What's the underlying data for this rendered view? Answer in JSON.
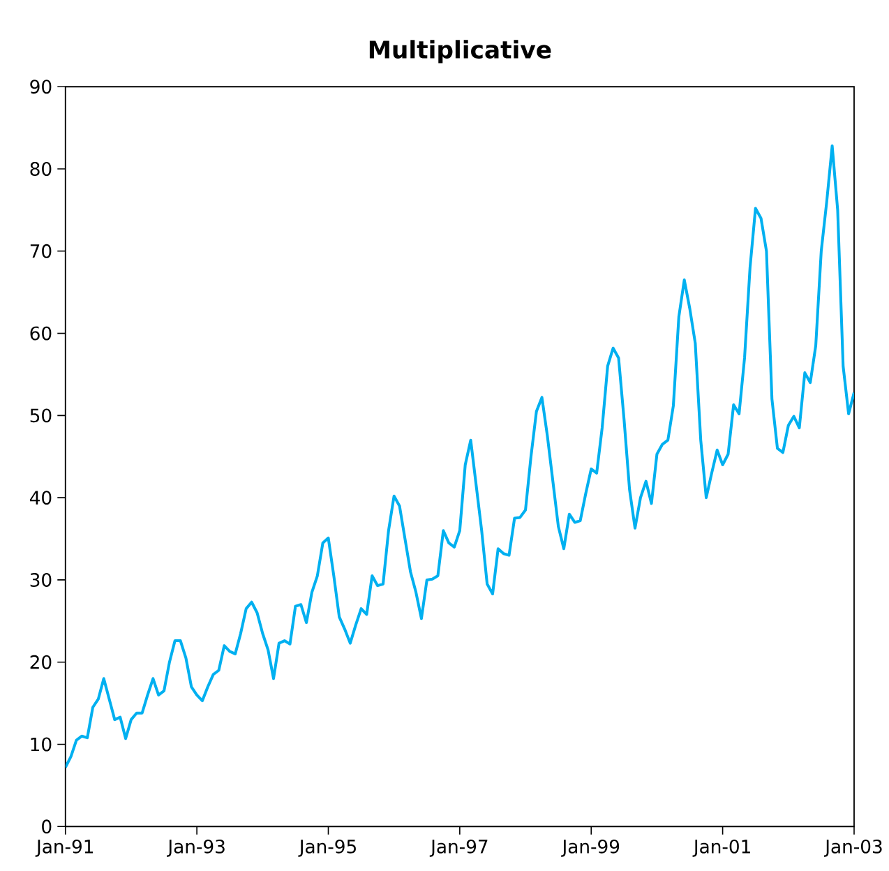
{
  "chart_data": {
    "type": "line",
    "title": "Multiplicative",
    "x": [
      "1991-01",
      "1991-02",
      "1991-03",
      "1991-04",
      "1991-05",
      "1991-06",
      "1991-07",
      "1991-08",
      "1991-09",
      "1991-10",
      "1991-11",
      "1991-12",
      "1992-01",
      "1992-02",
      "1992-03",
      "1992-04",
      "1992-05",
      "1992-06",
      "1992-07",
      "1992-08",
      "1992-09",
      "1992-10",
      "1992-11",
      "1992-12",
      "1993-01",
      "1993-02",
      "1993-03",
      "1993-04",
      "1993-05",
      "1993-06",
      "1993-07",
      "1993-08",
      "1993-09",
      "1993-10",
      "1993-11",
      "1993-12",
      "1994-01",
      "1994-02",
      "1994-03",
      "1994-04",
      "1994-05",
      "1994-06",
      "1994-07",
      "1994-08",
      "1994-09",
      "1994-10",
      "1994-11",
      "1994-12",
      "1995-01",
      "1995-02",
      "1995-03",
      "1995-04",
      "1995-05",
      "1995-06",
      "1995-07",
      "1995-08",
      "1995-09",
      "1995-10",
      "1995-11",
      "1995-12",
      "1996-01",
      "1996-02",
      "1996-03",
      "1996-04",
      "1996-05",
      "1996-06",
      "1996-07",
      "1996-08",
      "1996-09",
      "1996-10",
      "1996-11",
      "1996-12",
      "1997-01",
      "1997-02",
      "1997-03",
      "1997-04",
      "1997-05",
      "1997-06",
      "1997-07",
      "1997-08",
      "1997-09",
      "1997-10",
      "1997-11",
      "1997-12",
      "1998-01",
      "1998-02",
      "1998-03",
      "1998-04",
      "1998-05",
      "1998-06",
      "1998-07",
      "1998-08",
      "1998-09",
      "1998-10",
      "1998-11",
      "1998-12",
      "1999-01",
      "1999-02",
      "1999-03",
      "1999-04",
      "1999-05",
      "1999-06",
      "1999-07",
      "1999-08",
      "1999-09",
      "1999-10",
      "1999-11",
      "1999-12",
      "2000-01",
      "2000-02",
      "2000-03",
      "2000-04",
      "2000-05",
      "2000-06",
      "2000-07",
      "2000-08",
      "2000-09",
      "2000-10",
      "2000-11",
      "2000-12",
      "2001-01",
      "2001-02",
      "2001-03",
      "2001-04",
      "2001-05",
      "2001-06",
      "2001-07",
      "2001-08",
      "2001-09",
      "2001-10",
      "2001-11",
      "2001-12",
      "2002-01",
      "2002-02",
      "2002-03",
      "2002-04",
      "2002-05",
      "2002-06",
      "2002-07",
      "2002-08",
      "2002-09",
      "2002-10",
      "2002-11",
      "2002-12",
      "2003-01"
    ],
    "series": [
      {
        "color": "#00b0f0",
        "values": [
          7.2,
          8.5,
          10.5,
          11,
          10.8,
          14.5,
          15.5,
          18,
          15.5,
          13,
          13.3,
          10.7,
          13,
          13.8,
          13.8,
          16,
          18,
          16,
          16.5,
          20,
          22.6,
          22.6,
          20.5,
          17,
          16,
          15.3,
          17,
          18.5,
          19,
          22,
          21.3,
          21,
          23.5,
          26.5,
          27.3,
          26,
          23.5,
          21.5,
          18,
          22.3,
          22.6,
          22.2,
          26.8,
          27,
          24.8,
          28.5,
          30.5,
          34.5,
          35.1,
          30.5,
          25.5,
          24,
          22.3,
          24.5,
          26.5,
          25.8,
          30.5,
          29.3,
          29.5,
          36,
          40.2,
          39,
          35,
          31,
          28.5,
          25.3,
          30,
          30.1,
          30.5,
          36,
          34.5,
          34,
          36,
          44,
          47,
          41.5,
          36,
          29.5,
          28.3,
          33.8,
          33.2,
          33,
          37.5,
          37.6,
          38.5,
          45,
          50.5,
          52.2,
          47.5,
          42,
          36.5,
          33.8,
          38,
          37,
          37.2,
          40.5,
          43.5,
          43,
          48.5,
          56,
          58.2,
          57,
          49.5,
          41,
          36.3,
          40,
          42,
          39.3,
          45.3,
          46.5,
          47,
          51.2,
          62,
          66.5,
          63,
          58.8,
          47,
          40,
          43,
          45.8,
          44,
          45.3,
          51.3,
          50.2,
          57,
          68,
          75.2,
          74,
          70,
          52,
          46,
          45.5,
          48.8,
          49.9,
          48.5,
          55.2,
          54,
          58.5,
          70,
          76,
          82.8,
          75,
          56,
          50.2,
          52.8
        ]
      }
    ],
    "xlim": [
      "1991-01",
      "2003-01"
    ],
    "xticks": [
      {
        "value": "1991-01",
        "label": "Jan-91"
      },
      {
        "value": "1993-01",
        "label": "Jan-93"
      },
      {
        "value": "1995-01",
        "label": "Jan-95"
      },
      {
        "value": "1997-01",
        "label": "Jan-97"
      },
      {
        "value": "1999-01",
        "label": "Jan-99"
      },
      {
        "value": "2001-01",
        "label": "Jan-01"
      },
      {
        "value": "2003-01",
        "label": "Jan-03"
      }
    ],
    "ylim": [
      0,
      90
    ],
    "yticks": [
      0,
      10,
      20,
      30,
      40,
      50,
      60,
      70,
      80,
      90
    ],
    "grid": false,
    "marker": "none",
    "line_style": "solid"
  }
}
